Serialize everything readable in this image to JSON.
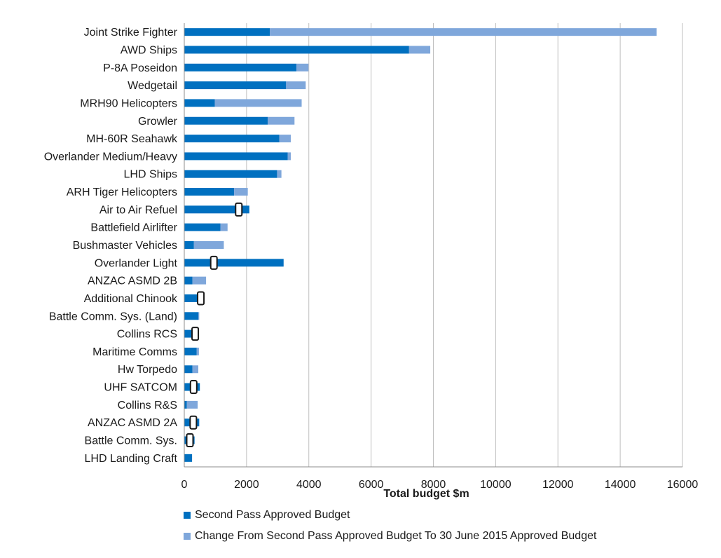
{
  "chart_data": {
    "type": "bar",
    "orientation": "horizontal",
    "stacked": true,
    "xlabel": "Total budget $m",
    "xlim": [
      0,
      16000
    ],
    "xticks": [
      0,
      2000,
      4000,
      6000,
      8000,
      10000,
      12000,
      14000,
      16000
    ],
    "grid": "vertical",
    "legend_position": "bottom",
    "categories": [
      "Joint Strike Fighter",
      "AWD Ships",
      "P-8A Poseidon",
      "Wedgetail",
      "MRH90 Helicopters",
      "Growler",
      "MH-60R Seahawk",
      "Overlander Medium/Heavy",
      "LHD Ships",
      "ARH Tiger Helicopters",
      "Air to Air Refuel",
      "Battlefield Airlifter",
      "Bushmaster Vehicles",
      "Overlander Light",
      "ANZAC ASMD 2B",
      "Additional Chinook",
      "Battle Comm. Sys. (Land)",
      "Collins RCS",
      "Maritime Comms",
      "Hw Torpedo",
      "UHF SATCOM",
      "Collins R&S",
      "ANZAC ASMD 2A",
      "Battle Comm. Sys.",
      "LHD Landing Craft"
    ],
    "series": [
      {
        "name": "Second Pass Approved Budget",
        "color": "#0070C0",
        "values": [
          2750,
          7220,
          3600,
          3270,
          980,
          2680,
          3050,
          3320,
          2980,
          1600,
          2090,
          1160,
          310,
          3190,
          260,
          590,
          450,
          420,
          400,
          260,
          500,
          80,
          480,
          330,
          250
        ]
      },
      {
        "name": "Change From Second Pass Approved Budget To 30 June 2015 Approved Budget",
        "color": "#7FA7DB",
        "values": [
          12420,
          680,
          390,
          630,
          2790,
          860,
          370,
          100,
          140,
          440,
          0,
          230,
          960,
          0,
          440,
          0,
          30,
          0,
          70,
          190,
          0,
          350,
          0,
          0,
          0
        ]
      }
    ],
    "markers": {
      "shape": "rounded-rectangle",
      "items": [
        {
          "category": "Air to Air Refuel",
          "value": 1750
        },
        {
          "category": "Overlander Light",
          "value": 950
        },
        {
          "category": "Additional Chinook",
          "value": 530
        },
        {
          "category": "Collins RCS",
          "value": 350
        },
        {
          "category": "UHF SATCOM",
          "value": 300
        },
        {
          "category": "ANZAC ASMD 2A",
          "value": 290
        },
        {
          "category": "Battle Comm. Sys.",
          "value": 180
        }
      ]
    }
  },
  "legend": {
    "items": [
      {
        "label": "Second Pass Approved Budget",
        "color": "#0070C0"
      },
      {
        "label": "Change From Second Pass Approved Budget To 30 June 2015 Approved Budget",
        "color": "#7FA7DB"
      }
    ]
  }
}
